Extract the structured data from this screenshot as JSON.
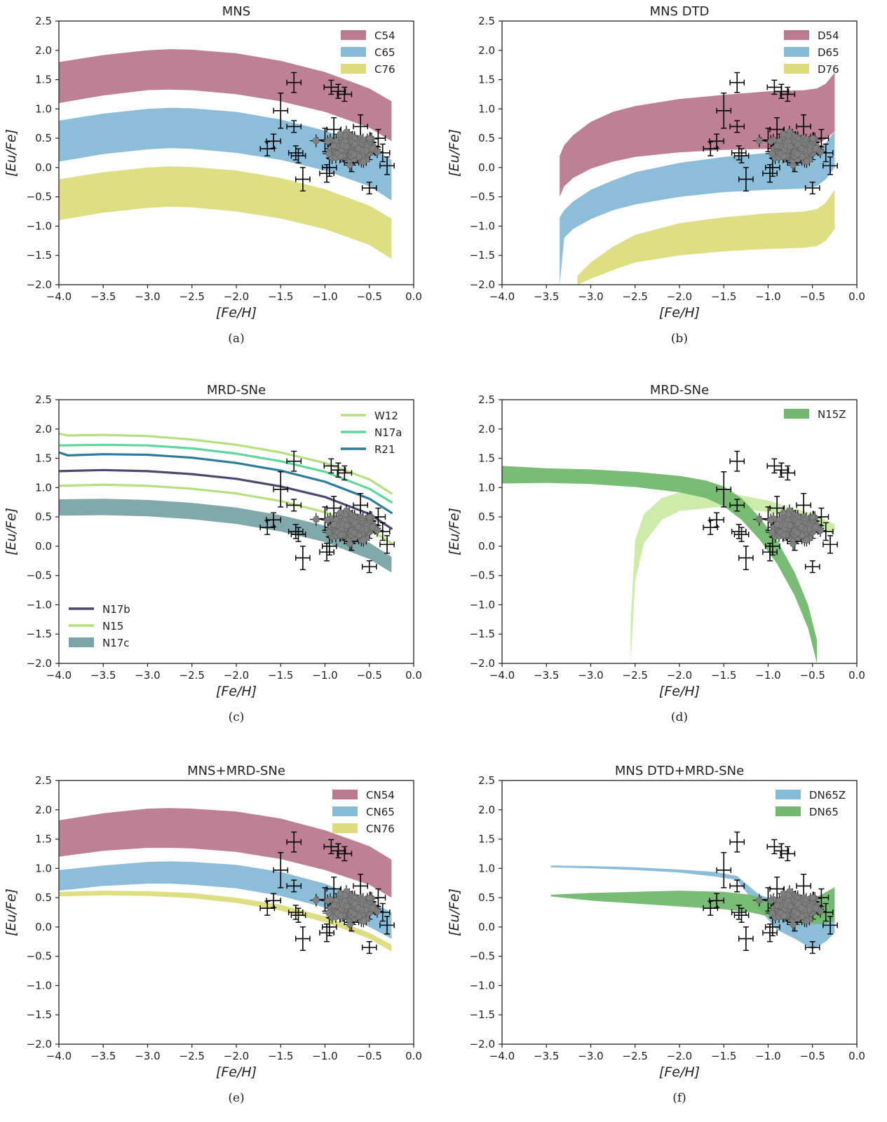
{
  "axes": {
    "xlabel": "[Fe/H]",
    "ylabel": "[Eu/Fe]",
    "xlim": [
      -4.0,
      0.0
    ],
    "ylim": [
      -2.0,
      2.5
    ],
    "xticks": [
      "−4.0",
      "−3.5",
      "−3.0",
      "−2.5",
      "−2.0",
      "−1.5",
      "−1.0",
      "−0.5",
      "0.0"
    ],
    "yticks": [
      "−2.0",
      "−1.5",
      "−1.0",
      "−0.5",
      "0.0",
      "0.5",
      "1.0",
      "1.5",
      "2.0",
      "2.5"
    ],
    "grid": false
  },
  "colors": {
    "red": "#b9798e",
    "blue": "#86bbd8",
    "yellow": "#dcdc7c",
    "light_green": "#b5e07d",
    "teal_green": "#5fd79c",
    "dark_blue": "#2d7c9c",
    "purple": "#4b4a6e",
    "gray_teal": "#7aa4a8",
    "green": "#72b86e",
    "pale_green": "#c4e89a",
    "scatter": "#808080"
  },
  "observations": {
    "points": [
      [
        -1.35,
        1.45,
        0.17
      ],
      [
        -0.93,
        1.37,
        0.12
      ],
      [
        -0.85,
        1.3,
        0.12
      ],
      [
        -0.78,
        1.25,
        0.12
      ],
      [
        -1.5,
        0.97,
        0.3
      ],
      [
        -1.35,
        0.7,
        0.1
      ],
      [
        -1.58,
        0.45,
        0.12
      ],
      [
        -1.65,
        0.32,
        0.12
      ],
      [
        -1.33,
        0.25,
        0.12
      ],
      [
        -1.3,
        0.2,
        0.12
      ],
      [
        -1.25,
        -0.2,
        0.2
      ],
      [
        -0.98,
        -0.1,
        0.15
      ],
      [
        -0.95,
        0.0,
        0.15
      ],
      [
        -0.7,
        0.08,
        0.15
      ],
      [
        -0.5,
        -0.35,
        0.1
      ],
      [
        -0.3,
        0.03,
        0.15
      ],
      [
        -1.0,
        0.47,
        0.2
      ],
      [
        -0.9,
        0.65,
        0.2
      ],
      [
        -0.6,
        0.7,
        0.2
      ],
      [
        -0.4,
        0.5,
        0.15
      ],
      [
        -0.35,
        0.25,
        0.15
      ]
    ],
    "cluster": {
      "center": [
        -0.68,
        0.33
      ],
      "spread": [
        0.23,
        0.2
      ],
      "count": 180
    }
  },
  "chart_data": [
    {
      "type": "area",
      "title": "MNS",
      "caption": "(a)",
      "legend": "top-right",
      "series": [
        {
          "name": "C54",
          "color": "#b9798e",
          "x": [
            -4.0,
            -3.5,
            -3.0,
            -2.75,
            -2.5,
            -2.0,
            -1.5,
            -1.0,
            -0.5,
            -0.25
          ],
          "lower": [
            1.1,
            1.23,
            1.32,
            1.33,
            1.32,
            1.25,
            1.13,
            0.95,
            0.68,
            0.45
          ],
          "upper": [
            1.8,
            1.92,
            2.0,
            2.02,
            2.01,
            1.95,
            1.82,
            1.63,
            1.35,
            1.13
          ]
        },
        {
          "name": "C65",
          "color": "#86bbd8",
          "x": [
            -4.0,
            -3.5,
            -3.0,
            -2.75,
            -2.5,
            -2.0,
            -1.5,
            -1.0,
            -0.5,
            -0.25
          ],
          "lower": [
            0.1,
            0.23,
            0.31,
            0.33,
            0.32,
            0.25,
            0.13,
            -0.05,
            -0.32,
            -0.56
          ],
          "upper": [
            0.8,
            0.92,
            1.0,
            1.02,
            1.01,
            0.95,
            0.82,
            0.63,
            0.35,
            0.13
          ]
        },
        {
          "name": "C76",
          "color": "#dcdc7c",
          "x": [
            -4.0,
            -3.5,
            -3.0,
            -2.75,
            -2.5,
            -2.0,
            -1.5,
            -1.0,
            -0.5,
            -0.25
          ],
          "lower": [
            -0.9,
            -0.77,
            -0.69,
            -0.67,
            -0.68,
            -0.75,
            -0.87,
            -1.05,
            -1.32,
            -1.56
          ],
          "upper": [
            -0.2,
            -0.08,
            0.0,
            0.02,
            0.01,
            -0.05,
            -0.18,
            -0.37,
            -0.65,
            -0.87
          ]
        }
      ]
    },
    {
      "type": "area",
      "title": "MNS DTD",
      "caption": "(b)",
      "legend": "top-right",
      "series": [
        {
          "name": "D54",
          "color": "#b9798e",
          "x": [
            -3.35,
            -3.3,
            -3.2,
            -3.0,
            -2.75,
            -2.5,
            -2.0,
            -1.5,
            -1.0,
            -0.6,
            -0.45,
            -0.35,
            -0.25
          ],
          "lower": [
            -0.5,
            -0.32,
            -0.18,
            -0.02,
            0.1,
            0.18,
            0.26,
            0.3,
            0.32,
            0.34,
            0.4,
            0.48,
            0.62
          ],
          "upper": [
            0.2,
            0.38,
            0.55,
            0.78,
            0.95,
            1.05,
            1.17,
            1.24,
            1.3,
            1.32,
            1.35,
            1.43,
            1.62
          ]
        },
        {
          "name": "D65",
          "color": "#86bbd8",
          "x": [
            -3.35,
            -3.3,
            -3.2,
            -3.0,
            -2.75,
            -2.5,
            -2.0,
            -1.5,
            -1.0,
            -0.6,
            -0.45,
            -0.35,
            -0.25
          ],
          "lower": [
            -2.0,
            -1.2,
            -1.05,
            -0.88,
            -0.73,
            -0.63,
            -0.5,
            -0.42,
            -0.38,
            -0.36,
            -0.32,
            -0.2,
            0.0
          ],
          "upper": [
            -0.85,
            -0.73,
            -0.58,
            -0.38,
            -0.22,
            -0.08,
            0.08,
            0.18,
            0.25,
            0.28,
            0.33,
            0.42,
            0.62
          ]
        },
        {
          "name": "D76",
          "color": "#dcdc7c",
          "x": [
            -3.15,
            -3.0,
            -2.75,
            -2.5,
            -2.0,
            -1.5,
            -1.0,
            -0.6,
            -0.45,
            -0.35,
            -0.25
          ],
          "lower": [
            -2.0,
            -1.9,
            -1.75,
            -1.62,
            -1.5,
            -1.43,
            -1.39,
            -1.37,
            -1.34,
            -1.25,
            -1.05
          ],
          "upper": [
            -1.85,
            -1.62,
            -1.35,
            -1.15,
            -0.95,
            -0.85,
            -0.78,
            -0.75,
            -0.71,
            -0.6,
            -0.38
          ]
        }
      ]
    },
    {
      "type": "line",
      "title": "MRD-SNe",
      "caption": "(c)",
      "legend": "top-right; bottom-left",
      "series": [
        {
          "name": "W12",
          "color": "#b5e07d",
          "kind": "line",
          "x": [
            -4.0,
            -3.9,
            -3.5,
            -3.0,
            -2.5,
            -2.0,
            -1.5,
            -1.0,
            -0.5,
            -0.25
          ],
          "y": [
            1.92,
            1.89,
            1.9,
            1.88,
            1.82,
            1.73,
            1.6,
            1.42,
            1.14,
            0.9
          ]
        },
        {
          "name": "N17a",
          "color": "#5fd79c",
          "kind": "line",
          "x": [
            -4.0,
            -3.5,
            -3.0,
            -2.5,
            -2.0,
            -1.5,
            -1.0,
            -0.5,
            -0.25
          ],
          "y": [
            1.72,
            1.73,
            1.72,
            1.67,
            1.58,
            1.45,
            1.27,
            0.98,
            0.75
          ]
        },
        {
          "name": "R21",
          "color": "#2d7c9c",
          "kind": "line",
          "x": [
            -4.0,
            -3.9,
            -3.5,
            -3.0,
            -2.5,
            -2.0,
            -1.5,
            -1.0,
            -0.5,
            -0.25
          ],
          "y": [
            1.6,
            1.55,
            1.57,
            1.56,
            1.51,
            1.42,
            1.29,
            1.1,
            0.81,
            0.57
          ]
        },
        {
          "name": "N17b",
          "color": "#4b4a6e",
          "kind": "line",
          "x": [
            -4.0,
            -3.5,
            -3.0,
            -2.5,
            -2.0,
            -1.5,
            -1.0,
            -0.5,
            -0.25
          ],
          "y": [
            1.28,
            1.3,
            1.28,
            1.23,
            1.15,
            1.02,
            0.84,
            0.55,
            0.3
          ]
        },
        {
          "name": "N15",
          "color": "#b5e07d",
          "kind": "line",
          "x": [
            -4.0,
            -3.5,
            -3.0,
            -2.5,
            -2.0,
            -1.5,
            -1.0,
            -0.5,
            -0.25
          ],
          "y": [
            1.03,
            1.05,
            1.03,
            0.98,
            0.9,
            0.77,
            0.58,
            0.29,
            0.05
          ]
        },
        {
          "name": "N17c",
          "color": "#7aa4a8",
          "kind": "band",
          "x": [
            -4.0,
            -3.5,
            -3.0,
            -2.5,
            -2.0,
            -1.5,
            -1.0,
            -0.5,
            -0.25
          ],
          "lower": [
            0.52,
            0.53,
            0.51,
            0.46,
            0.38,
            0.25,
            0.07,
            -0.22,
            -0.45
          ],
          "upper": [
            0.8,
            0.81,
            0.79,
            0.74,
            0.66,
            0.53,
            0.35,
            0.06,
            -0.18
          ]
        }
      ]
    },
    {
      "type": "area",
      "title": "MRD-SNe",
      "caption": "(d)",
      "legend": "top-right",
      "series": [
        {
          "name": "",
          "color": "#c4e89a",
          "x": [
            -2.55,
            -2.5,
            -2.4,
            -2.2,
            -2.0,
            -1.5,
            -1.0,
            -0.5,
            -0.25
          ],
          "lower": [
            -2.0,
            -0.6,
            0.05,
            0.45,
            0.6,
            0.68,
            0.58,
            0.38,
            0.2
          ],
          "upper": [
            -1.3,
            0.1,
            0.55,
            0.82,
            0.92,
            0.92,
            0.78,
            0.55,
            0.38
          ]
        },
        {
          "name": "N15Z",
          "color": "#72b86e",
          "x": [
            -4.0,
            -3.5,
            -3.0,
            -2.5,
            -2.0,
            -1.7,
            -1.5,
            -1.3,
            -1.1,
            -0.9,
            -0.7,
            -0.55,
            -0.45
          ],
          "lower": [
            1.07,
            1.08,
            1.06,
            1.01,
            0.92,
            0.82,
            0.68,
            0.45,
            0.12,
            -0.3,
            -0.85,
            -1.4,
            -2.0
          ],
          "upper": [
            1.37,
            1.33,
            1.31,
            1.27,
            1.2,
            1.12,
            1.02,
            0.82,
            0.5,
            0.1,
            -0.45,
            -1.0,
            -1.6
          ]
        }
      ]
    },
    {
      "type": "area",
      "title": "MNS+MRD-SNe",
      "caption": "(e)",
      "legend": "top-right",
      "series": [
        {
          "name": "CN54",
          "color": "#b9798e",
          "x": [
            -4.0,
            -3.5,
            -3.0,
            -2.75,
            -2.5,
            -2.0,
            -1.5,
            -1.0,
            -0.5,
            -0.25
          ],
          "lower": [
            1.2,
            1.3,
            1.35,
            1.35,
            1.34,
            1.28,
            1.16,
            0.97,
            0.72,
            0.5
          ],
          "upper": [
            1.82,
            1.94,
            2.02,
            2.03,
            2.02,
            1.97,
            1.85,
            1.65,
            1.38,
            1.15
          ]
        },
        {
          "name": "CN65",
          "color": "#86bbd8",
          "x": [
            -4.0,
            -3.5,
            -3.0,
            -2.75,
            -2.5,
            -2.0,
            -1.5,
            -1.0,
            -0.5,
            -0.25
          ],
          "lower": [
            0.62,
            0.7,
            0.74,
            0.74,
            0.72,
            0.66,
            0.53,
            0.33,
            0.0,
            -0.2
          ],
          "upper": [
            0.97,
            1.05,
            1.11,
            1.12,
            1.11,
            1.06,
            0.94,
            0.74,
            0.44,
            0.25
          ]
        },
        {
          "name": "CN76",
          "color": "#dcdc7c",
          "x": [
            -4.0,
            -3.5,
            -3.0,
            -2.5,
            -2.0,
            -1.5,
            -1.0,
            -0.5,
            -0.25
          ],
          "lower": [
            0.52,
            0.54,
            0.53,
            0.49,
            0.41,
            0.28,
            0.08,
            -0.2,
            -0.42
          ],
          "upper": [
            0.6,
            0.62,
            0.61,
            0.58,
            0.5,
            0.38,
            0.18,
            -0.1,
            -0.3
          ]
        }
      ]
    },
    {
      "type": "area",
      "title": "MNS DTD+MRD-SNe",
      "caption": "(f)",
      "legend": "top-right",
      "series": [
        {
          "name": "DN65Z",
          "color": "#86bbd8",
          "x": [
            -3.45,
            -3.0,
            -2.5,
            -2.0,
            -1.6,
            -1.35,
            -1.1,
            -0.9,
            -0.7,
            -0.5,
            -0.35,
            -0.25
          ],
          "lower": [
            1.02,
            1.0,
            0.97,
            0.93,
            0.86,
            0.8,
            0.3,
            -0.05,
            -0.2,
            -0.38,
            -0.25,
            -0.1
          ],
          "upper": [
            1.05,
            1.04,
            1.02,
            0.98,
            0.94,
            0.87,
            0.55,
            0.45,
            0.4,
            0.35,
            0.45,
            0.5
          ]
        },
        {
          "name": "DN65",
          "color": "#72b86e",
          "x": [
            -3.45,
            -3.0,
            -2.5,
            -2.0,
            -1.5,
            -1.2,
            -1.0,
            -0.8,
            -0.6,
            -0.4,
            -0.25
          ],
          "lower": [
            0.52,
            0.45,
            0.4,
            0.35,
            0.3,
            0.25,
            0.18,
            0.1,
            0.05,
            0.05,
            0.1
          ],
          "upper": [
            0.55,
            0.58,
            0.6,
            0.62,
            0.6,
            0.55,
            0.45,
            0.4,
            0.45,
            0.55,
            0.68
          ]
        }
      ]
    }
  ]
}
